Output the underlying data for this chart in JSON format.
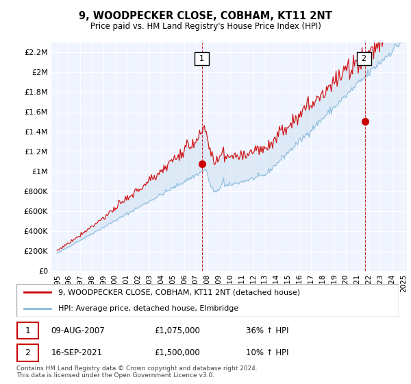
{
  "title": "9, WOODPECKER CLOSE, COBHAM, KT11 2NT",
  "subtitle": "Price paid vs. HM Land Registry's House Price Index (HPI)",
  "legend_line1": "9, WOODPECKER CLOSE, COBHAM, KT11 2NT (detached house)",
  "legend_line2": "HPI: Average price, detached house, Elmbridge",
  "annotation1_label": "1",
  "annotation1_date": "09-AUG-2007",
  "annotation1_price": "£1,075,000",
  "annotation1_pct": "36% ↑ HPI",
  "annotation2_label": "2",
  "annotation2_date": "16-SEP-2021",
  "annotation2_price": "£1,500,000",
  "annotation2_pct": "10% ↑ HPI",
  "footer": "Contains HM Land Registry data © Crown copyright and database right 2024.\nThis data is licensed under the Open Government Licence v3.0.",
  "hpi_color": "#88bbdd",
  "price_color": "#cc0000",
  "fill_color": "#cce0f0",
  "vline_color": "#cc0000",
  "bg_color": "#f0f4ff",
  "ylim": [
    0,
    2300000
  ],
  "yticks": [
    0,
    200000,
    400000,
    600000,
    800000,
    1000000,
    1200000,
    1400000,
    1600000,
    1800000,
    2000000,
    2200000
  ],
  "ytick_labels": [
    "£0",
    "£200K",
    "£400K",
    "£600K",
    "£800K",
    "£1M",
    "£1.2M",
    "£1.4M",
    "£1.6M",
    "£1.8M",
    "£2M",
    "£2.2M"
  ],
  "xmin_year": 1995,
  "xmax_year": 2025,
  "xticks": [
    1995,
    1996,
    1997,
    1998,
    1999,
    2000,
    2001,
    2002,
    2003,
    2004,
    2005,
    2006,
    2007,
    2008,
    2009,
    2010,
    2011,
    2012,
    2013,
    2014,
    2015,
    2016,
    2017,
    2018,
    2019,
    2020,
    2021,
    2022,
    2023,
    2024,
    2025
  ],
  "sale1_x": 2007.583,
  "sale1_y": 1075000,
  "sale2_x": 2021.667,
  "sale2_y": 1500000
}
